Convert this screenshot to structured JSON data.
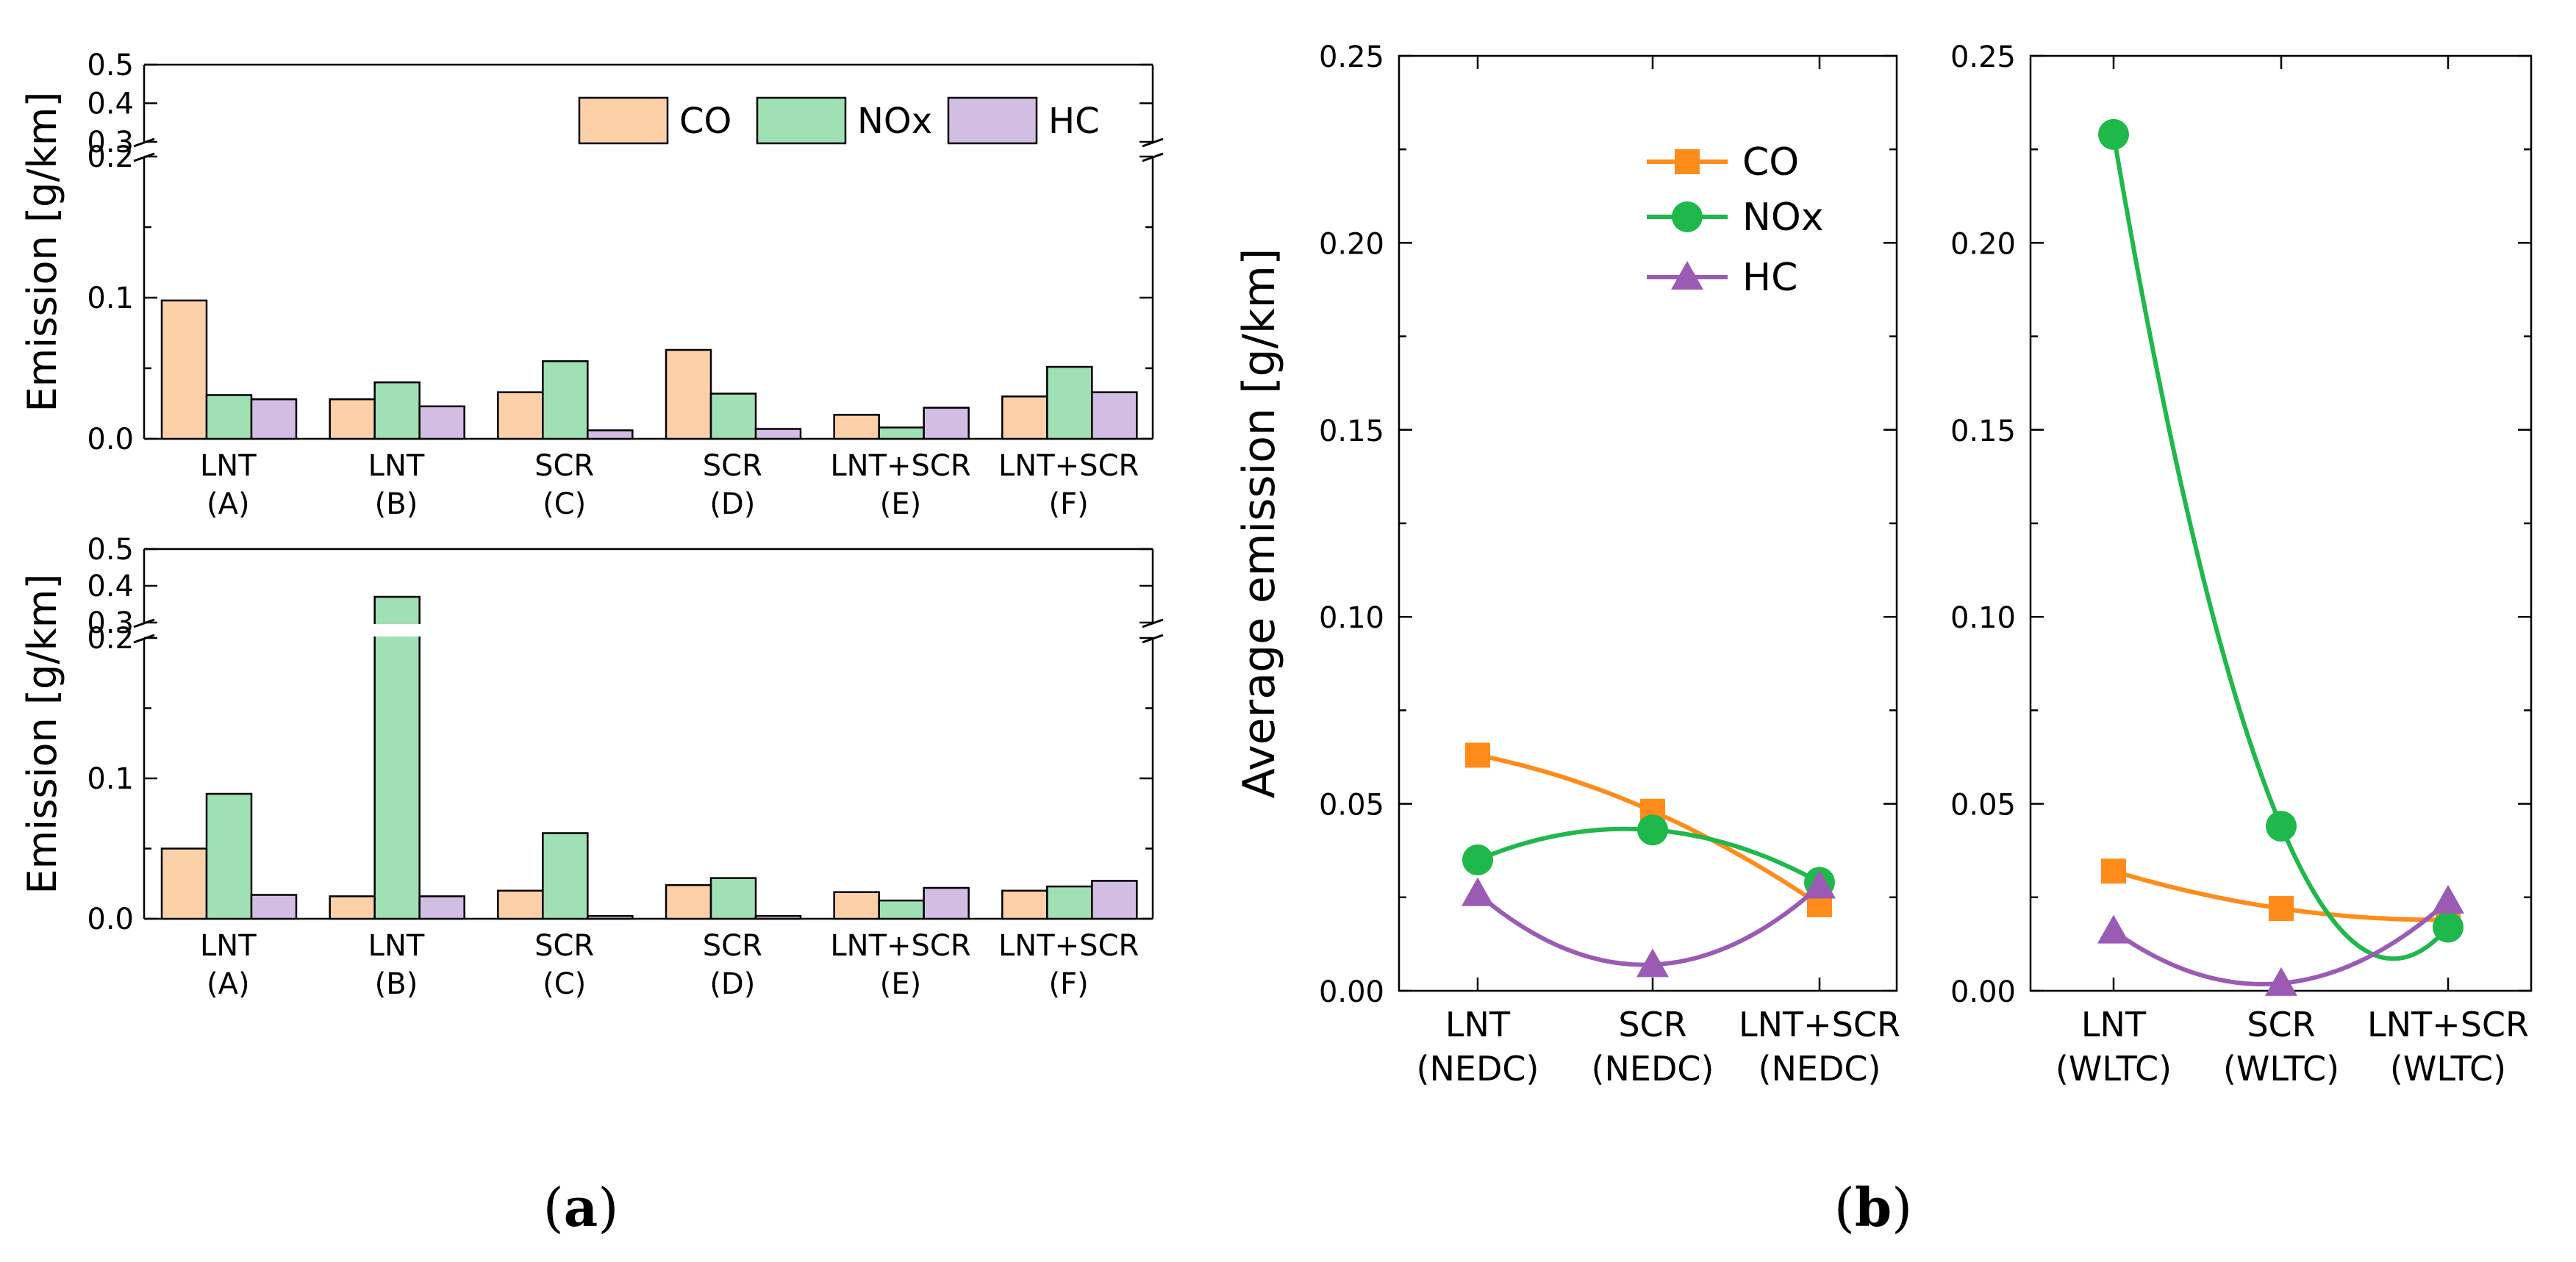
{
  "colors": {
    "CO_bar": "#fdd0a8",
    "NOx_bar": "#9fe0b4",
    "HC_bar": "#d2bde3",
    "CO_line": "#ff8c1a",
    "NOx_line": "#1fb84a",
    "HC_line": "#9b5bb5"
  },
  "panel_labels": {
    "a": "a",
    "b": "b"
  },
  "chart_data": [
    {
      "id": "a-top",
      "type": "bar",
      "title": "",
      "ylabel": "Emission [g/km]",
      "ylim": [
        0,
        0.2
      ],
      "upper_ylim": [
        0.3,
        0.5
      ],
      "axis_break": true,
      "yticks": [
        "0.0",
        "0.1",
        "0.2"
      ],
      "upper_yticks": [
        "0.3",
        "0.4",
        "0.5"
      ],
      "categories": [
        {
          "line1": "LNT",
          "line2": "(A)"
        },
        {
          "line1": "LNT",
          "line2": "(B)"
        },
        {
          "line1": "SCR",
          "line2": "(C)"
        },
        {
          "line1": "SCR",
          "line2": "(D)"
        },
        {
          "line1": "LNT+SCR",
          "line2": "(E)"
        },
        {
          "line1": "LNT+SCR",
          "line2": "(F)"
        }
      ],
      "series": [
        {
          "name": "CO",
          "values": [
            0.098,
            0.028,
            0.033,
            0.063,
            0.017,
            0.03
          ]
        },
        {
          "name": "NOx",
          "values": [
            0.031,
            0.04,
            0.055,
            0.032,
            0.008,
            0.051
          ]
        },
        {
          "name": "HC",
          "values": [
            0.028,
            0.023,
            0.006,
            0.007,
            0.022,
            0.033
          ]
        }
      ],
      "legend": "top-right"
    },
    {
      "id": "a-bottom",
      "type": "bar",
      "title": "",
      "ylabel": "Emission [g/km]",
      "ylim": [
        0,
        0.2
      ],
      "upper_ylim": [
        0.3,
        0.5
      ],
      "axis_break": true,
      "yticks": [
        "0.0",
        "0.1",
        "0.2"
      ],
      "upper_yticks": [
        "0.3",
        "0.4",
        "0.5"
      ],
      "categories": [
        {
          "line1": "LNT",
          "line2": "(A)"
        },
        {
          "line1": "LNT",
          "line2": "(B)"
        },
        {
          "line1": "SCR",
          "line2": "(C)"
        },
        {
          "line1": "SCR",
          "line2": "(D)"
        },
        {
          "line1": "LNT+SCR",
          "line2": "(E)"
        },
        {
          "line1": "LNT+SCR",
          "line2": "(F)"
        }
      ],
      "series": [
        {
          "name": "CO",
          "values": [
            0.05,
            0.016,
            0.02,
            0.024,
            0.019,
            0.02
          ]
        },
        {
          "name": "NOx",
          "values": [
            0.089,
            0.37,
            0.061,
            0.029,
            0.013,
            0.023
          ]
        },
        {
          "name": "HC",
          "values": [
            0.017,
            0.016,
            0.002,
            0.002,
            0.022,
            0.027
          ]
        }
      ],
      "legend": "none"
    },
    {
      "id": "b-nedc",
      "type": "line",
      "title": "",
      "ylabel": "Average emission [g/km]",
      "ylim": [
        0,
        0.25
      ],
      "yticks": [
        "0.00",
        "0.05",
        "0.10",
        "0.15",
        "0.20",
        "0.25"
      ],
      "categories": [
        {
          "line1": "LNT",
          "line2": "(NEDC)"
        },
        {
          "line1": "SCR",
          "line2": "(NEDC)"
        },
        {
          "line1": "LNT+SCR",
          "line2": "(NEDC)"
        }
      ],
      "series": [
        {
          "name": "CO",
          "marker": "square",
          "values": [
            0.063,
            0.048,
            0.023
          ]
        },
        {
          "name": "NOx",
          "marker": "circle",
          "values": [
            0.035,
            0.043,
            0.029
          ]
        },
        {
          "name": "HC",
          "marker": "triangle",
          "values": [
            0.026,
            0.007,
            0.028
          ]
        }
      ],
      "legend": "top-right"
    },
    {
      "id": "b-wltc",
      "type": "line",
      "title": "",
      "ylabel": "",
      "ylim": [
        0,
        0.25
      ],
      "yticks": [
        "0.00",
        "0.05",
        "0.10",
        "0.15",
        "0.20",
        "0.25"
      ],
      "categories": [
        {
          "line1": "LNT",
          "line2": "(WLTC)"
        },
        {
          "line1": "SCR",
          "line2": "(WLTC)"
        },
        {
          "line1": "LNT+SCR",
          "line2": "(WLTC)"
        }
      ],
      "series": [
        {
          "name": "CO",
          "marker": "square",
          "values": [
            0.032,
            0.022,
            0.019
          ]
        },
        {
          "name": "NOx",
          "marker": "circle",
          "values": [
            0.229,
            0.044,
            0.017
          ]
        },
        {
          "name": "HC",
          "marker": "triangle",
          "values": [
            0.016,
            0.002,
            0.024
          ]
        }
      ],
      "legend": "none"
    }
  ]
}
